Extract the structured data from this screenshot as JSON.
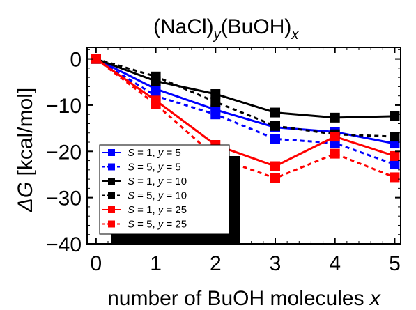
{
  "chart_data": {
    "type": "line",
    "title": {
      "base1": "(NaCl)",
      "sub1": "y",
      "base2": "(BuOH)",
      "sub2": "x"
    },
    "xlabel": {
      "text": "number of BuOH molecules ",
      "var": "x"
    },
    "ylabel": {
      "sym": "ΔG",
      "unit": " [kcal/mol]"
    },
    "xlim": [
      -0.15,
      5.1
    ],
    "ylim": [
      -40,
      2.5
    ],
    "xticks": [
      0,
      1,
      2,
      3,
      4,
      5
    ],
    "yticks": [
      0,
      -10,
      -20,
      -30,
      -40
    ],
    "x": [
      0,
      1,
      2,
      3,
      4,
      5
    ],
    "series": [
      {
        "name": "S = 1, y = 5",
        "S": "1",
        "y": "5",
        "color": "#0000ff",
        "dashed": false,
        "values": [
          0,
          -6.5,
          -11.0,
          -14.8,
          -15.8,
          -18.3
        ]
      },
      {
        "name": "S = 5, y = 5",
        "S": "5",
        "y": "5",
        "color": "#0000ff",
        "dashed": true,
        "values": [
          0,
          -8.0,
          -12.0,
          -17.3,
          -18.2,
          -22.8
        ]
      },
      {
        "name": "S = 1, y = 10",
        "S": "1",
        "y": "10",
        "color": "#000000",
        "dashed": false,
        "values": [
          0,
          -4.8,
          -7.6,
          -11.6,
          -12.7,
          -12.4
        ]
      },
      {
        "name": "S = 5, y = 10",
        "S": "5",
        "y": "10",
        "color": "#000000",
        "dashed": true,
        "values": [
          0,
          -3.8,
          -9.3,
          -14.5,
          -16.3,
          -16.8
        ]
      },
      {
        "name": "S = 1, y = 25",
        "S": "1",
        "y": "25",
        "color": "#ff0000",
        "dashed": false,
        "values": [
          0,
          -9.0,
          -18.6,
          -23.2,
          -16.8,
          -21.0
        ]
      },
      {
        "name": "S = 5, y = 25",
        "S": "5",
        "y": "25",
        "color": "#ff0000",
        "dashed": true,
        "values": [
          0,
          -9.8,
          -21.2,
          -25.8,
          -20.5,
          -25.6
        ]
      }
    ],
    "legend_position": "bottom-left",
    "grid": false
  }
}
